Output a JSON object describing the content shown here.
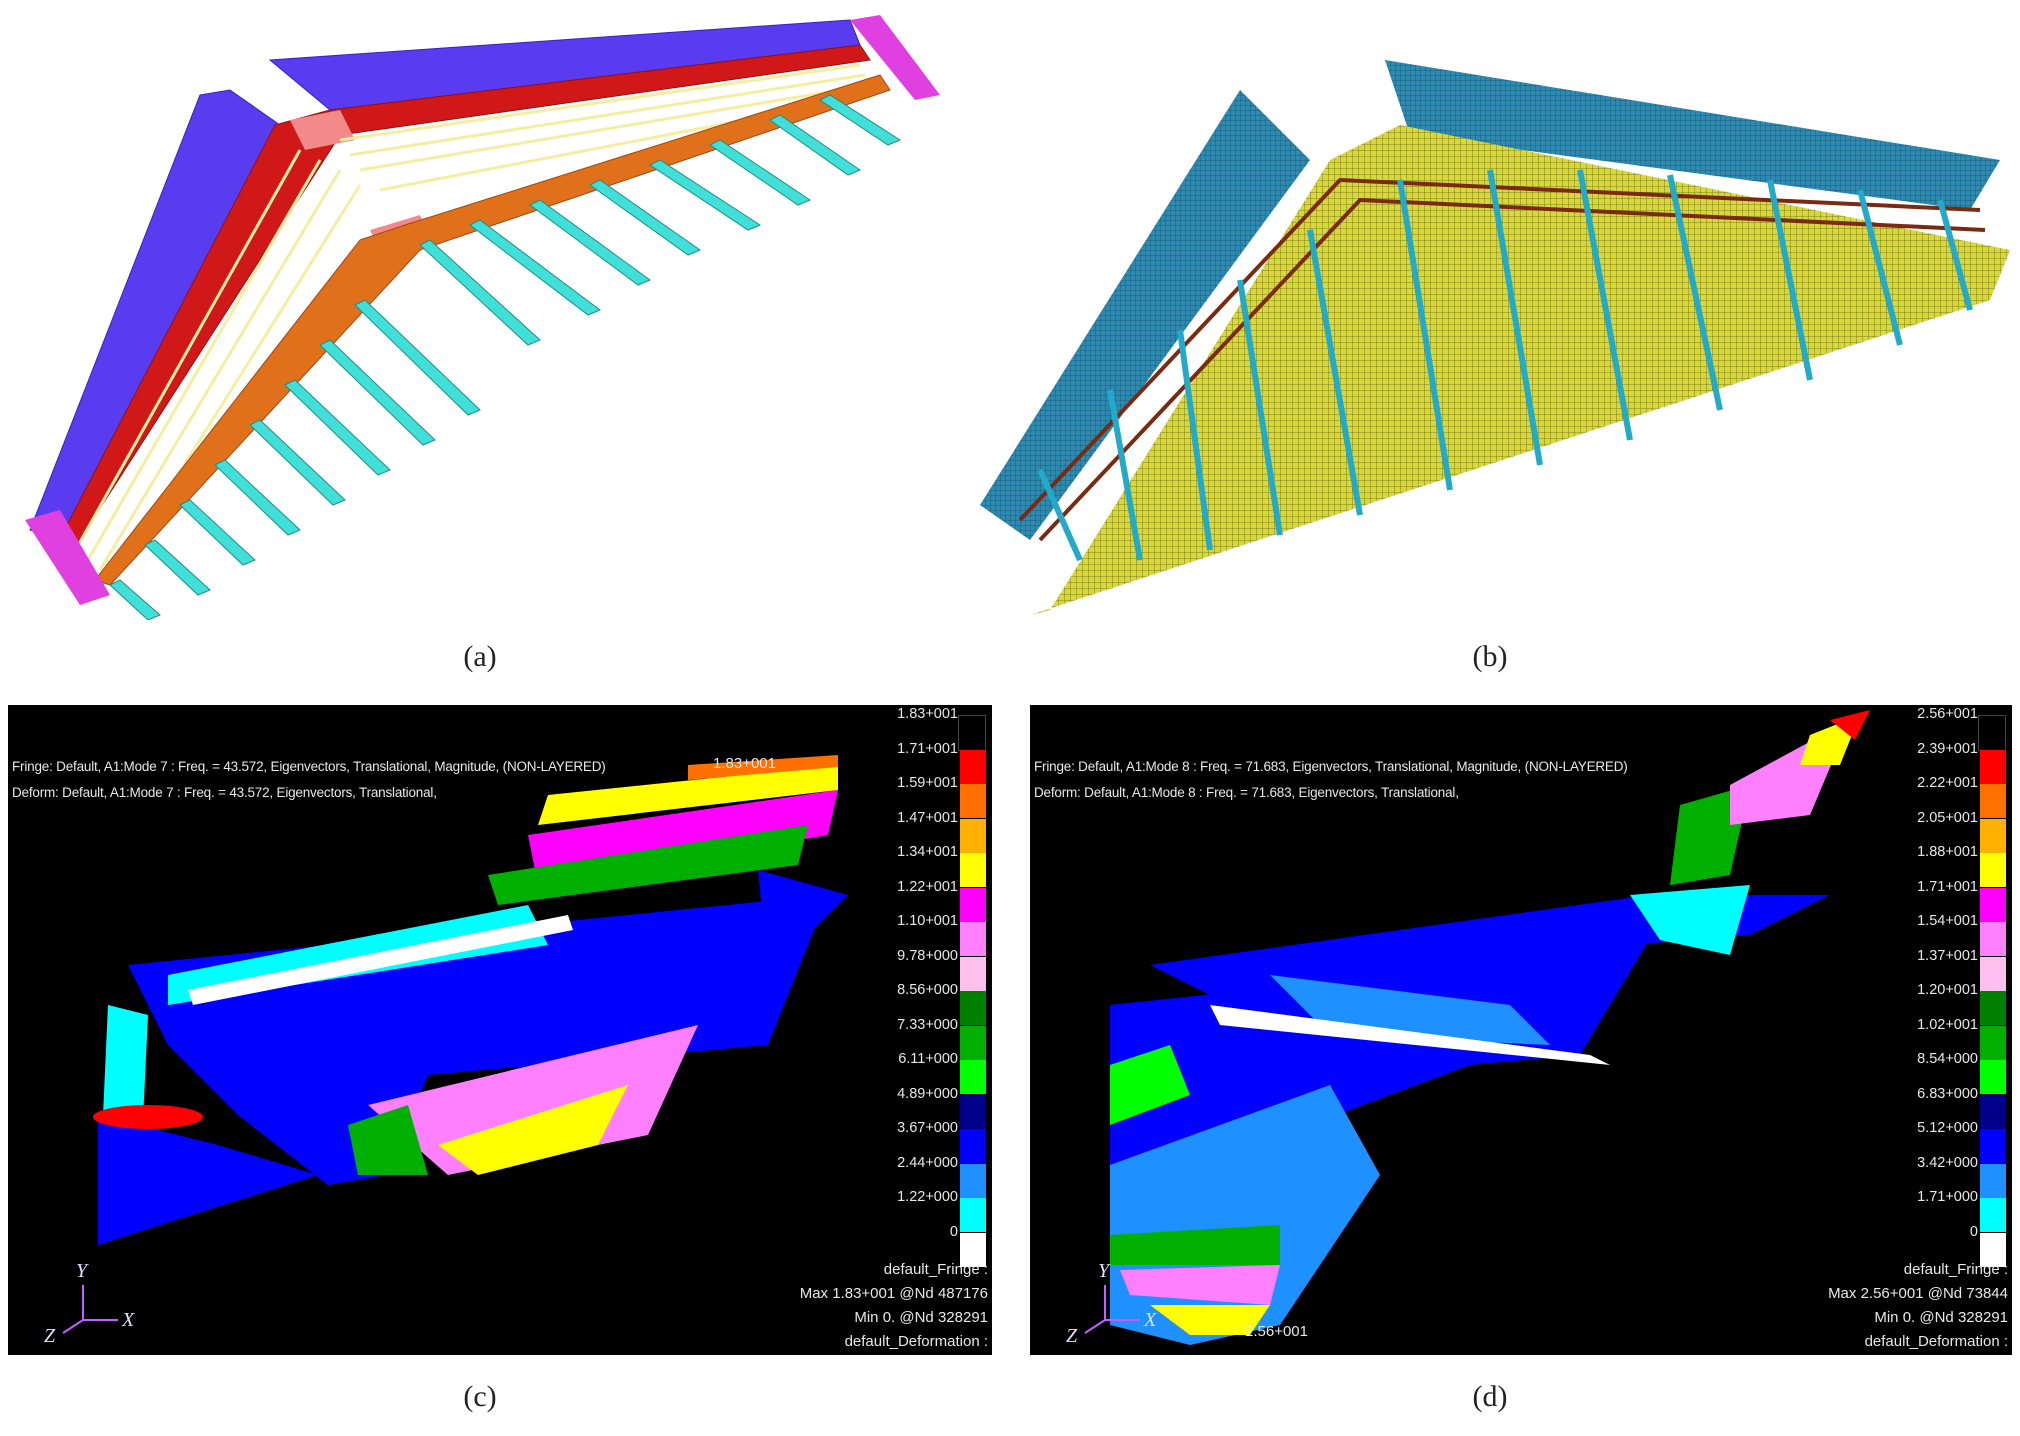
{
  "captions": [
    "(a)",
    "(b)",
    "(c)",
    "(d)"
  ],
  "panel_c": {
    "fringe_header": "Fringe: Default, A1:Mode 7 : Freq. = 43.572, Eigenvectors, Translational, Magnitude, (NON-LAYERED)",
    "deform_header": "Deform: Default, A1:Mode 7 : Freq. = 43.572, Eigenvectors, Translational,",
    "max_marker": "1.83+001",
    "legend": [
      "1.83+001",
      "1.71+001",
      "1.59+001",
      "1.47+001",
      "1.34+001",
      "1.22+001",
      "1.10+001",
      "9.78+000",
      "8.56+000",
      "7.33+000",
      "6.11+000",
      "4.89+000",
      "3.67+000",
      "2.44+000",
      "1.22+000",
      "0"
    ],
    "stats": [
      "default_Fringe :",
      "Max 1.83+001 @Nd 487176",
      "Min 0. @Nd 328291",
      "default_Deformation :"
    ],
    "axes": {
      "y": "Y",
      "z": "Z",
      "x": "X"
    }
  },
  "panel_d": {
    "fringe_header": "Fringe: Default, A1:Mode 8 : Freq. = 71.683, Eigenvectors, Translational, Magnitude, (NON-LAYERED)",
    "deform_header": "Deform: Default, A1:Mode 8 : Freq. = 71.683, Eigenvectors, Translational,",
    "max_marker": "2.56+001",
    "legend": [
      "2.56+001",
      "2.39+001",
      "2.22+001",
      "2.05+001",
      "1.88+001",
      "1.71+001",
      "1.54+001",
      "1.37+001",
      "1.20+001",
      "1.02+001",
      "8.54+000",
      "6.83+000",
      "5.12+000",
      "3.42+000",
      "1.71+000",
      "0"
    ],
    "stats": [
      "default_Fringe :",
      "Max 2.56+001 @Nd 73844",
      "Min 0. @Nd 328291",
      "default_Deformation :"
    ],
    "axes": {
      "y": "Y",
      "z": "Z",
      "x": "X"
    }
  },
  "legend_colors": [
    "#000000",
    "#ff0000",
    "#ff7000",
    "#ffb000",
    "#ffff00",
    "#ff00ff",
    "#ff80ff",
    "#ffc0f0",
    "#008000",
    "#00b000",
    "#00ff00",
    "#00008b",
    "#0000ff",
    "#1e90ff",
    "#00ffff",
    "#ffffff"
  ]
}
